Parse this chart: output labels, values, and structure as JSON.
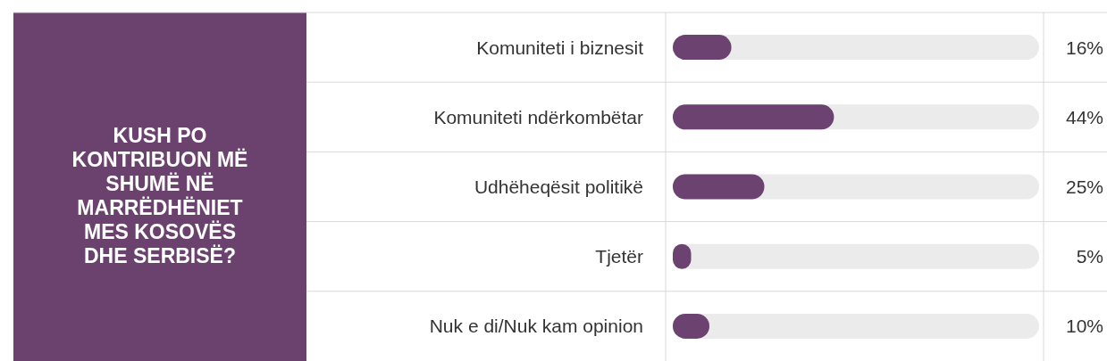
{
  "chart_data": {
    "type": "bar",
    "orientation": "horizontal",
    "title": "KUSH PO KONTRIBUON MË SHUMË NË MARRËDHËNIET MES KOSOVËS DHE SERBISË?",
    "categories": [
      "Komuniteti i biznesit",
      "Komuniteti ndërkombëtar",
      "Udhëheqësit politikë",
      "Tjetër",
      "Nuk e di/Nuk kam opinion"
    ],
    "values": [
      16,
      44,
      25,
      5,
      10
    ],
    "value_labels": [
      "16%",
      "44%",
      "25%",
      "5%",
      "10%"
    ],
    "color": "#6b4270",
    "xlim": [
      0,
      100
    ],
    "tick_labels": "y",
    "grid": false
  }
}
